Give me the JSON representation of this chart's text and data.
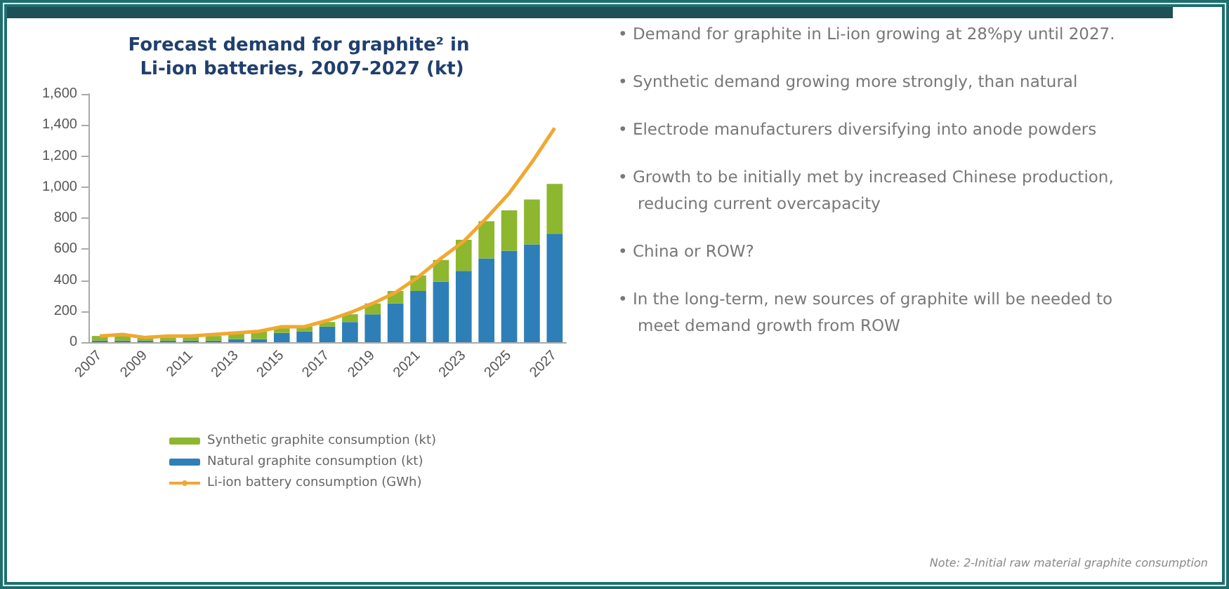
{
  "chart_data": {
    "type": "bar",
    "title": "Forecast demand for graphite² in Li-ion batteries, 2007-2027 (kt)",
    "categories": [
      "2007",
      null,
      "2009",
      null,
      "2011",
      null,
      "2013",
      null,
      "2015",
      null,
      "2017",
      null,
      "2019",
      null,
      "2021",
      null,
      "2023",
      null,
      "2025",
      null,
      "2027"
    ],
    "stacked": true,
    "series": [
      {
        "name": "Natural graphite consumption (kt)",
        "color": "#2e7fb8",
        "values": [
          10,
          10,
          10,
          10,
          10,
          10,
          20,
          20,
          60,
          70,
          100,
          130,
          180,
          250,
          330,
          390,
          460,
          540,
          590,
          630,
          700
        ]
      },
      {
        "name": "Synthetic graphite consumption (kt)",
        "color": "#8db72e",
        "values": [
          30,
          30,
          20,
          20,
          30,
          30,
          40,
          50,
          30,
          30,
          30,
          50,
          70,
          80,
          100,
          140,
          200,
          240,
          260,
          290,
          320
        ]
      },
      {
        "name": "Li-ion battery consumption (GWh)",
        "type": "line",
        "color": "#f0a830",
        "values": [
          40,
          50,
          30,
          40,
          40,
          50,
          60,
          70,
          100,
          100,
          140,
          190,
          250,
          320,
          420,
          540,
          650,
          800,
          960,
          1160,
          1380
        ]
      }
    ],
    "ylim": [
      0,
      1600
    ],
    "yticks": [
      0,
      {
        "value": 200,
        "label": "200"
      },
      {
        "value": 400,
        "label": "400"
      },
      {
        "value": 600,
        "label": "600"
      },
      {
        "value": 800,
        "label": "800"
      },
      {
        "value": 1000,
        "label": "1,000"
      },
      {
        "value": 1200,
        "label": "1,200"
      },
      {
        "value": 1400,
        "label": "1,400"
      },
      {
        "value": 1600,
        "label": "1,600"
      }
    ],
    "grid": false,
    "legend": "bottom",
    "marker": "none",
    "annotations": [
      "• Demand for graphite in Li-ion growing at 28%py until 2027.",
      "• Synthetic demand growing more strongly, than natural",
      "• Electrode manufacturers diversifying into anode powders",
      "• Growth to be initially met by increased Chinese production, reducing current overcapacity",
      "• China or ROW?",
      "• In the long-term, new sources of graphite will be needed to meet demand growth from ROW",
      "Note:   2-Initial raw material graphite consumption"
    ]
  }
}
